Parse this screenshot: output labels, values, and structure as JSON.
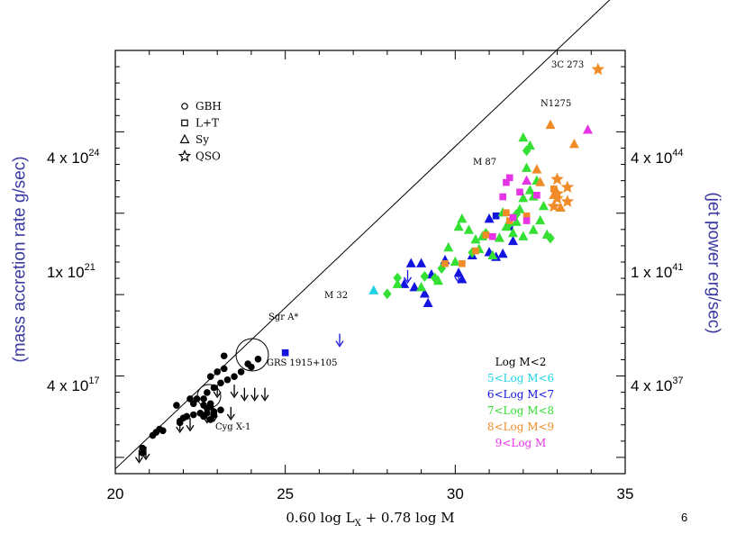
{
  "page_number": "6",
  "chart_data": {
    "type": "scatter",
    "xlabel": "0.60 log L",
    "xlabel_sub": "X",
    "xlabel_rest": " + 0.78 log M",
    "xlim": [
      20,
      35
    ],
    "x_ticks": [
      "20",
      "25",
      "30",
      "35"
    ],
    "ylabel_left": "(mass accretion rate g/sec)",
    "ylabel_right": "(jet power erg/sec)",
    "y_ticks_left": [
      {
        "base": "4 x 10",
        "exp": "24"
      },
      {
        "base": "1x 10",
        "exp": "21"
      },
      {
        "base": "4 x 10",
        "exp": "17"
      }
    ],
    "y_ticks_right": [
      {
        "base": "4 x 10",
        "exp": "44"
      },
      {
        "base": "1 x 10",
        "exp": "41"
      },
      {
        "base": "4 x 10",
        "exp": "37"
      }
    ],
    "legend_shapes": [
      {
        "symbol": "circle",
        "label": "GBH"
      },
      {
        "symbol": "square",
        "label": "L+T"
      },
      {
        "symbol": "triangle",
        "label": "Sy"
      },
      {
        "symbol": "star",
        "label": "QSO"
      }
    ],
    "legend_colors_title": "Log M<2",
    "legend_colors": [
      {
        "label": "5<Log M<6",
        "color": "#22d3e8"
      },
      {
        "label": "6<Log M<7",
        "color": "#1414e0"
      },
      {
        "label": "7<Log M<8",
        "color": "#33e033"
      },
      {
        "label": "8<Log M<9",
        "color": "#f08c28"
      },
      {
        "label": "9<Log M",
        "color": "#e633e6"
      }
    ],
    "annotations": [
      "3C 273",
      "N1275",
      "M 87",
      "M 32",
      "Sgr A*",
      "GRS 1915+105",
      "Cyg X-1"
    ],
    "fit_line": {
      "x": [
        20,
        35
      ],
      "y": [
        15.5,
        45.9
      ]
    },
    "series": [
      {
        "group": "GBH",
        "color": "#000000",
        "symbol": "circle",
        "points": [
          [
            20.8,
            16.5
          ],
          [
            20.8,
            16.8
          ],
          [
            21.2,
            17.8
          ],
          [
            21.3,
            18.0
          ],
          [
            21.1,
            17.6
          ],
          [
            21.4,
            17.9
          ],
          [
            21.9,
            18.5
          ],
          [
            22.0,
            18.7
          ],
          [
            21.9,
            18.4
          ],
          [
            22.1,
            18.8
          ],
          [
            22.3,
            18.9
          ],
          [
            22.5,
            19.0
          ],
          [
            22.6,
            18.8
          ],
          [
            22.7,
            19.3
          ],
          [
            22.8,
            19.4
          ],
          [
            22.9,
            19.1
          ],
          [
            22.6,
            19.5
          ],
          [
            22.8,
            19.6
          ],
          [
            22.7,
            19.0
          ],
          [
            22.8,
            18.6
          ],
          [
            22.9,
            18.9
          ],
          [
            23.1,
            19.2
          ],
          [
            22.2,
            19.9
          ],
          [
            22.4,
            19.9
          ],
          [
            22.6,
            19.9
          ],
          [
            22.3,
            19.6
          ],
          [
            22.7,
            20.3
          ],
          [
            22.9,
            20.6
          ],
          [
            23.1,
            20.9
          ],
          [
            23.3,
            21.1
          ],
          [
            23.5,
            21.3
          ],
          [
            23.0,
            21.6
          ],
          [
            22.8,
            21.3
          ],
          [
            23.2,
            21.8
          ],
          [
            24.2,
            22.4
          ],
          [
            23.9,
            22.1
          ],
          [
            24.0,
            21.9
          ],
          [
            23.7,
            21.6
          ],
          [
            21.8,
            19.5
          ],
          [
            23.2,
            22.6
          ]
        ]
      },
      {
        "group": "GBH-upper-limit",
        "color": "#000000",
        "symbol": "limit",
        "points": [
          [
            20.7,
            16.3
          ],
          [
            20.9,
            16.5
          ],
          [
            21.9,
            18.2
          ],
          [
            22.2,
            18.3
          ],
          [
            22.7,
            18.8
          ],
          [
            23.0,
            20.4
          ],
          [
            23.4,
            19.0
          ],
          [
            23.5,
            20.4
          ],
          [
            23.8,
            20.2
          ],
          [
            24.1,
            20.2
          ],
          [
            24.4,
            20.2
          ],
          [
            22.9,
            18.9
          ]
        ]
      },
      {
        "group": "Sgr A*",
        "color": "#1414e0",
        "symbol": "square",
        "points": [
          [
            25.0,
            22.8
          ]
        ]
      },
      {
        "group": "M 32",
        "color": "#1414e0",
        "symbol": "limit",
        "points": [
          [
            26.6,
            23.6
          ]
        ]
      },
      {
        "group": "5<Log M<6",
        "color": "#22d3e8",
        "symbol": "triangle",
        "points": [
          [
            27.6,
            26.7
          ]
        ]
      },
      {
        "group": "6<Log M<7",
        "color": "#1414e0",
        "symbol": "triangle",
        "points": [
          [
            28.5,
            27.1
          ],
          [
            28.8,
            26.9
          ],
          [
            29.1,
            26.5
          ],
          [
            29.3,
            27.7
          ],
          [
            29.7,
            28.6
          ],
          [
            29.0,
            28.4
          ],
          [
            29.2,
            25.9
          ],
          [
            30.1,
            27.8
          ],
          [
            30.2,
            27.4
          ],
          [
            30.5,
            28.9
          ],
          [
            31.0,
            29.1
          ],
          [
            31.2,
            28.8
          ],
          [
            31.4,
            29.0
          ],
          [
            31.0,
            31.2
          ],
          [
            31.7,
            29.8
          ],
          [
            28.7,
            28.4
          ]
        ]
      },
      {
        "group": "6<Log M<7 square",
        "color": "#1414e0",
        "symbol": "square",
        "points": [
          [
            31.2,
            31.4
          ],
          [
            31.6,
            30.7
          ]
        ]
      },
      {
        "group": "6<Log M<7 limit",
        "color": "#1414e0",
        "symbol": "limit",
        "points": [
          [
            28.6,
            27.6
          ],
          [
            30.1,
            27.6
          ]
        ]
      },
      {
        "group": "7<Log M<8",
        "color": "#33e033",
        "symbol": "triangle",
        "points": [
          [
            28.3,
            27.1
          ],
          [
            29.0,
            26.9
          ],
          [
            29.5,
            27.3
          ],
          [
            30.0,
            28.5
          ],
          [
            30.2,
            31.2
          ],
          [
            30.4,
            30.5
          ],
          [
            30.6,
            29.9
          ],
          [
            30.8,
            30.1
          ],
          [
            31.3,
            30.0
          ],
          [
            31.5,
            30.7
          ],
          [
            31.7,
            30.3
          ],
          [
            31.9,
            31.8
          ],
          [
            32.0,
            32.5
          ],
          [
            32.2,
            33.0
          ],
          [
            32.1,
            34.4
          ],
          [
            32.3,
            30.5
          ],
          [
            32.5,
            31.1
          ],
          [
            32.6,
            32.0
          ],
          [
            32.0,
            30.1
          ],
          [
            31.1,
            28.9
          ],
          [
            30.7,
            29.3
          ],
          [
            32.7,
            30.2
          ],
          [
            31.8,
            31.0
          ],
          [
            32.4,
            33.6
          ],
          [
            30.1,
            30.7
          ],
          [
            29.8,
            29.4
          ],
          [
            31.4,
            31.6
          ],
          [
            32.0,
            36.3
          ],
          [
            32.2,
            35.8
          ],
          [
            32.3,
            32.6
          ]
        ]
      },
      {
        "group": "7<Log M<8 diamond",
        "color": "#33e033",
        "symbol": "diamond",
        "points": [
          [
            28.0,
            26.5
          ],
          [
            28.3,
            27.5
          ],
          [
            29.4,
            27.5
          ],
          [
            29.6,
            28.1
          ],
          [
            30.5,
            29.1
          ],
          [
            30.9,
            30.3
          ],
          [
            31.6,
            30.9
          ],
          [
            32.1,
            35.5
          ],
          [
            32.8,
            30.0
          ],
          [
            31.8,
            31.5
          ],
          [
            29.1,
            27.6
          ]
        ]
      },
      {
        "group": "8<Log M<9",
        "color": "#f08c28",
        "symbol": "triangle",
        "points": [
          [
            32.4,
            34.3
          ],
          [
            32.8,
            37.1
          ],
          [
            33.5,
            35.9
          ],
          [
            32.9,
            32.7
          ],
          [
            32.5,
            33.5
          ],
          [
            33.1,
            31.9
          ]
        ]
      },
      {
        "group": "8<Log M<9 square",
        "color": "#f08c28",
        "symbol": "square",
        "points": [
          [
            29.7,
            28.4
          ],
          [
            30.6,
            29.2
          ],
          [
            30.9,
            30.2
          ],
          [
            31.5,
            31.6
          ],
          [
            32.1,
            31.4
          ],
          [
            30.2,
            28.4
          ],
          [
            31.6,
            31.1
          ],
          [
            32.9,
            33.1
          ]
        ]
      },
      {
        "group": "8<Log M<9 star",
        "color": "#f08c28",
        "symbol": "star",
        "points": [
          [
            34.2,
            40.6
          ],
          [
            33.0,
            33.7
          ],
          [
            33.3,
            32.3
          ],
          [
            33.0,
            32.8
          ],
          [
            33.3,
            33.2
          ],
          [
            33.0,
            32.5
          ],
          [
            32.9,
            32.0
          ]
        ]
      },
      {
        "group": "9<Log M",
        "color": "#e633e6",
        "symbol": "triangle",
        "points": [
          [
            33.9,
            36.8
          ],
          [
            32.1,
            33.6
          ]
        ]
      },
      {
        "group": "9<Log M square",
        "color": "#e633e6",
        "symbol": "square",
        "points": [
          [
            31.1,
            30.1
          ],
          [
            31.9,
            32.9
          ],
          [
            31.6,
            33.8
          ],
          [
            31.4,
            32.6
          ],
          [
            31.7,
            31.3
          ],
          [
            32.1,
            31.1
          ],
          [
            32.4,
            32.7
          ],
          [
            31.5,
            33.5
          ]
        ]
      }
    ]
  }
}
